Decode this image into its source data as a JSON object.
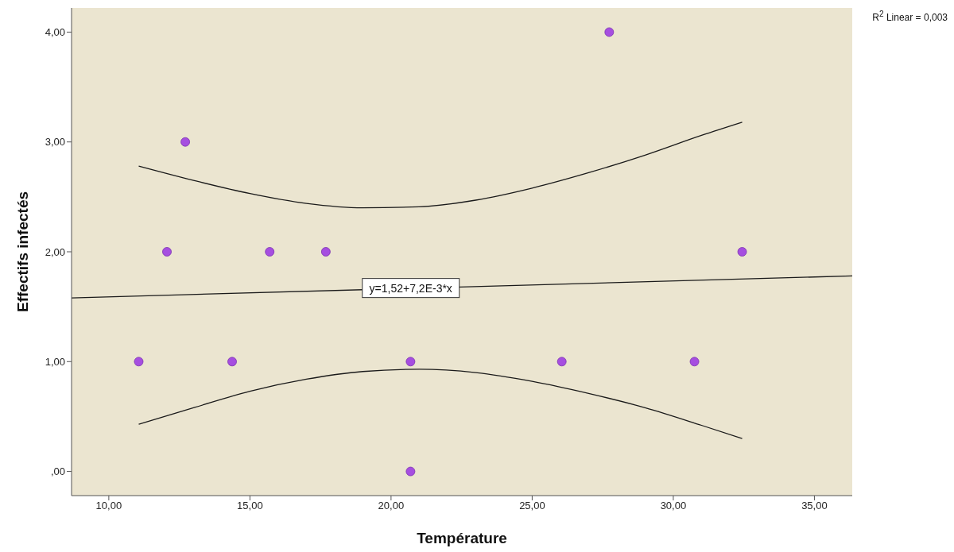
{
  "chart_data": {
    "type": "scatter",
    "xlabel": "Température",
    "ylabel": "Effectifs infectés",
    "annotations": [
      "R$^{2}$ Linear = 0,003",
      {
        "text": "y=1,52+7,2E-3*x",
        "x": 20.7,
        "y": 1.67
      }
    ],
    "series": [
      {
        "color": "#a64ee0",
        "x": [
          11.06,
          12.06,
          12.71,
          14.37,
          15.7,
          17.69,
          20.69,
          20.69,
          26.05,
          27.73,
          30.75,
          32.44
        ],
        "values": [
          1,
          2,
          3,
          1,
          2,
          2,
          1,
          0,
          1,
          4,
          1,
          2
        ],
        "marker": "circle"
      },
      {
        "type": "line",
        "color": "#1a1a1a",
        "x": [
          8.68,
          36.34
        ],
        "values": [
          1.58,
          1.78
        ],
        "marker": "none"
      },
      {
        "type": "line",
        "color": "#1a1a1a",
        "x": [
          11.06,
          13,
          15,
          17,
          19,
          21,
          23,
          25,
          27,
          29,
          31,
          32.44
        ],
        "values": [
          2.78,
          2.65,
          2.53,
          2.44,
          2.4,
          2.41,
          2.47,
          2.58,
          2.72,
          2.88,
          3.06,
          3.18
        ],
        "marker": "none"
      },
      {
        "type": "line",
        "color": "#1a1a1a",
        "x": [
          11.06,
          13,
          15,
          17,
          19,
          21,
          23,
          25,
          27,
          29,
          31,
          32.44
        ],
        "values": [
          0.43,
          0.58,
          0.73,
          0.84,
          0.91,
          0.93,
          0.9,
          0.82,
          0.71,
          0.58,
          0.42,
          0.3
        ],
        "marker": "none"
      }
    ],
    "xlim": [
      8.68,
      36.34
    ],
    "ylim": [
      -0.22,
      4.22
    ],
    "xticks": [
      {
        "value": 10,
        "label": "10,00"
      },
      {
        "value": 15,
        "label": "15,00"
      },
      {
        "value": 20,
        "label": "20,00"
      },
      {
        "value": 25,
        "label": "25,00"
      },
      {
        "value": 30,
        "label": "30,00"
      },
      {
        "value": 35,
        "label": "35,00"
      }
    ],
    "yticks": [
      {
        "value": 0,
        "label": ",00"
      },
      {
        "value": 1,
        "label": "1,00"
      },
      {
        "value": 2,
        "label": "2,00"
      },
      {
        "value": 3,
        "label": "3,00"
      },
      {
        "value": 4,
        "label": "4,00"
      }
    ],
    "grid": false,
    "legend": false,
    "line_style": "solid"
  }
}
